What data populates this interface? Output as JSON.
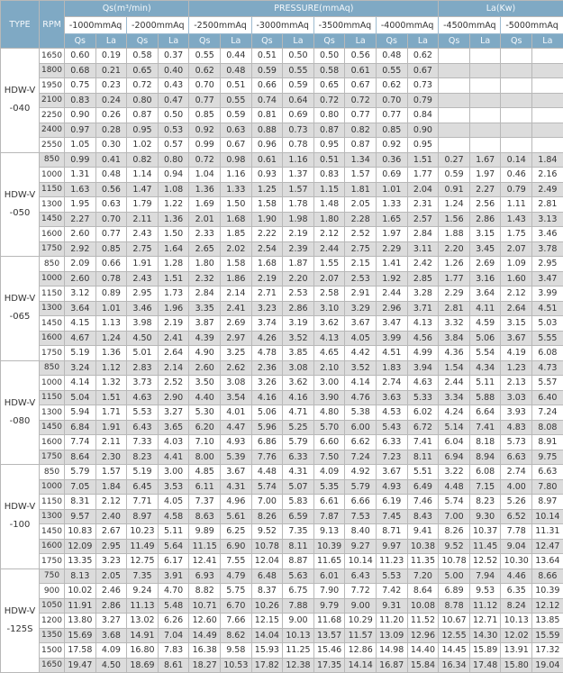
{
  "header": {
    "type": "TYPE",
    "rpm": "RPM",
    "qs_unit": "Qs(m³/min)",
    "pressure_unit": "PRESSURE(mmAq)",
    "la_unit": "La(Kw)",
    "pressures": [
      "-1000mmAq",
      "-2000mmAq",
      "-2500mmAq",
      "-3000mmAq",
      "-3500mmAq",
      "-4000mmAq",
      "-4500mmAq",
      "-5000mmAq"
    ],
    "qs": "Qs",
    "la": "La"
  },
  "groups": [
    {
      "type": "HDW-V\n-040",
      "rows": [
        [
          "1650",
          "0.60",
          "0.19",
          "0.58",
          "0.37",
          "0.55",
          "0.44",
          "0.51",
          "0.50",
          "0.50",
          "0.56",
          "0.48",
          "0.62",
          "",
          "",
          "",
          ""
        ],
        [
          "1800",
          "0.68",
          "0.21",
          "0.65",
          "0.40",
          "0.62",
          "0.48",
          "0.59",
          "0.55",
          "0.58",
          "0.61",
          "0.55",
          "0.67",
          "",
          "",
          "",
          ""
        ],
        [
          "1950",
          "0.75",
          "0.23",
          "0.72",
          "0.43",
          "0.70",
          "0.51",
          "0.66",
          "0.59",
          "0.65",
          "0.67",
          "0.62",
          "0.73",
          "",
          "",
          "",
          ""
        ],
        [
          "2100",
          "0.83",
          "0.24",
          "0.80",
          "0.47",
          "0.77",
          "0.55",
          "0.74",
          "0.64",
          "0.72",
          "0.72",
          "0.70",
          "0.79",
          "",
          "",
          "",
          ""
        ],
        [
          "2250",
          "0.90",
          "0.26",
          "0.87",
          "0.50",
          "0.85",
          "0.59",
          "0.81",
          "0.69",
          "0.80",
          "0.77",
          "0.77",
          "0.84",
          "",
          "",
          "",
          ""
        ],
        [
          "2400",
          "0.97",
          "0.28",
          "0.95",
          "0.53",
          "0.92",
          "0.63",
          "0.88",
          "0.73",
          "0.87",
          "0.82",
          "0.85",
          "0.90",
          "",
          "",
          "",
          ""
        ],
        [
          "2550",
          "1.05",
          "0.30",
          "1.02",
          "0.57",
          "0.99",
          "0.67",
          "0.96",
          "0.78",
          "0.95",
          "0.87",
          "0.92",
          "0.95",
          "",
          "",
          "",
          ""
        ]
      ]
    },
    {
      "type": "HDW-V\n-050",
      "rows": [
        [
          "850",
          "0.99",
          "0.41",
          "0.82",
          "0.80",
          "0.72",
          "0.98",
          "0.61",
          "1.16",
          "0.51",
          "1.34",
          "0.36",
          "1.51",
          "0.27",
          "1.67",
          "0.14",
          "1.84"
        ],
        [
          "1000",
          "1.31",
          "0.48",
          "1.14",
          "0.94",
          "1.04",
          "1.16",
          "0.93",
          "1.37",
          "0.83",
          "1.57",
          "0.69",
          "1.77",
          "0.59",
          "1.97",
          "0.46",
          "2.16"
        ],
        [
          "1150",
          "1.63",
          "0.56",
          "1.47",
          "1.08",
          "1.36",
          "1.33",
          "1.25",
          "1.57",
          "1.15",
          "1.81",
          "1.01",
          "2.04",
          "0.91",
          "2.27",
          "0.79",
          "2.49"
        ],
        [
          "1300",
          "1.95",
          "0.63",
          "1.79",
          "1.22",
          "1.69",
          "1.50",
          "1.58",
          "1.78",
          "1.48",
          "2.05",
          "1.33",
          "2.31",
          "1.24",
          "2.56",
          "1.11",
          "2.81"
        ],
        [
          "1450",
          "2.27",
          "0.70",
          "2.11",
          "1.36",
          "2.01",
          "1.68",
          "1.90",
          "1.98",
          "1.80",
          "2.28",
          "1.65",
          "2.57",
          "1.56",
          "2.86",
          "1.43",
          "3.13"
        ],
        [
          "1600",
          "2.60",
          "0.77",
          "2.43",
          "1.50",
          "2.33",
          "1.85",
          "2.22",
          "2.19",
          "2.12",
          "2.52",
          "1.97",
          "2.84",
          "1.88",
          "3.15",
          "1.75",
          "3.46"
        ],
        [
          "1750",
          "2.92",
          "0.85",
          "2.75",
          "1.64",
          "2.65",
          "2.02",
          "2.54",
          "2.39",
          "2.44",
          "2.75",
          "2.29",
          "3.11",
          "2.20",
          "3.45",
          "2.07",
          "3.78"
        ]
      ]
    },
    {
      "type": "HDW-V\n-065",
      "rows": [
        [
          "850",
          "2.09",
          "0.66",
          "1.91",
          "1.28",
          "1.80",
          "1.58",
          "1.68",
          "1.87",
          "1.55",
          "2.15",
          "1.41",
          "2.42",
          "1.26",
          "2.69",
          "1.09",
          "2.95"
        ],
        [
          "1000",
          "2.60",
          "0.78",
          "2.43",
          "1.51",
          "2.32",
          "1.86",
          "2.19",
          "2.20",
          "2.07",
          "2.53",
          "1.92",
          "2.85",
          "1.77",
          "3.16",
          "1.60",
          "3.47"
        ],
        [
          "1150",
          "3.12",
          "0.89",
          "2.95",
          "1.73",
          "2.84",
          "2.14",
          "2.71",
          "2.53",
          "2.58",
          "2.91",
          "2.44",
          "3.28",
          "2.29",
          "3.64",
          "2.12",
          "3.99"
        ],
        [
          "1300",
          "3.64",
          "1.01",
          "3.46",
          "1.96",
          "3.35",
          "2.41",
          "3.23",
          "2.86",
          "3.10",
          "3.29",
          "2.96",
          "3.71",
          "2.81",
          "4.11",
          "2.64",
          "4.51"
        ],
        [
          "1450",
          "4.15",
          "1.13",
          "3.98",
          "2.19",
          "3.87",
          "2.69",
          "3.74",
          "3.19",
          "3.62",
          "3.67",
          "3.47",
          "4.13",
          "3.32",
          "4.59",
          "3.15",
          "5.03"
        ],
        [
          "1600",
          "4.67",
          "1.24",
          "4.50",
          "2.41",
          "4.39",
          "2.97",
          "4.26",
          "3.52",
          "4.13",
          "4.05",
          "3.99",
          "4.56",
          "3.84",
          "5.06",
          "3.67",
          "5.55"
        ],
        [
          "1750",
          "5.19",
          "1.36",
          "5.01",
          "2.64",
          "4.90",
          "3.25",
          "4.78",
          "3.85",
          "4.65",
          "4.42",
          "4.51",
          "4.99",
          "4.36",
          "5.54",
          "4.19",
          "6.08"
        ]
      ]
    },
    {
      "type": "HDW-V\n-080",
      "rows": [
        [
          "850",
          "3.24",
          "1.12",
          "2.83",
          "2.14",
          "2.60",
          "2.62",
          "2.36",
          "3.08",
          "2.10",
          "3.52",
          "1.83",
          "3.94",
          "1.54",
          "4.34",
          "1.23",
          "4.73"
        ],
        [
          "1000",
          "4.14",
          "1.32",
          "3.73",
          "2.52",
          "3.50",
          "3.08",
          "3.26",
          "3.62",
          "3.00",
          "4.14",
          "2.74",
          "4.63",
          "2.44",
          "5.11",
          "2.13",
          "5.57"
        ],
        [
          "1150",
          "5.04",
          "1.51",
          "4.63",
          "2.90",
          "4.40",
          "3.54",
          "4.16",
          "4.16",
          "3.90",
          "4.76",
          "3.63",
          "5.33",
          "3.34",
          "5.88",
          "3.03",
          "6.40"
        ],
        [
          "1300",
          "5.94",
          "1.71",
          "5.53",
          "3.27",
          "5.30",
          "4.01",
          "5.06",
          "4.71",
          "4.80",
          "5.38",
          "4.53",
          "6.02",
          "4.24",
          "6.64",
          "3.93",
          "7.24"
        ],
        [
          "1450",
          "6.84",
          "1.91",
          "6.43",
          "3.65",
          "6.20",
          "4.47",
          "5.96",
          "5.25",
          "5.70",
          "6.00",
          "5.43",
          "6.72",
          "5.14",
          "7.41",
          "4.83",
          "8.08"
        ],
        [
          "1600",
          "7.74",
          "2.11",
          "7.33",
          "4.03",
          "7.10",
          "4.93",
          "6.86",
          "5.79",
          "6.60",
          "6.62",
          "6.33",
          "7.41",
          "6.04",
          "8.18",
          "5.73",
          "8.91"
        ],
        [
          "1750",
          "8.64",
          "2.30",
          "8.23",
          "4.41",
          "8.00",
          "5.39",
          "7.76",
          "6.33",
          "7.50",
          "7.24",
          "7.23",
          "8.11",
          "6.94",
          "8.94",
          "6.63",
          "9.75"
        ]
      ]
    },
    {
      "type": "HDW-V\n-100",
      "rows": [
        [
          "850",
          "5.79",
          "1.57",
          "5.19",
          "3.00",
          "4.85",
          "3.67",
          "4.48",
          "4.31",
          "4.09",
          "4.92",
          "3.67",
          "5.51",
          "3.22",
          "6.08",
          "2.74",
          "6.63"
        ],
        [
          "1000",
          "7.05",
          "1.84",
          "6.45",
          "3.53",
          "6.11",
          "4.31",
          "5.74",
          "5.07",
          "5.35",
          "5.79",
          "4.93",
          "6.49",
          "4.48",
          "7.15",
          "4.00",
          "7.80"
        ],
        [
          "1150",
          "8.31",
          "2.12",
          "7.71",
          "4.05",
          "7.37",
          "4.96",
          "7.00",
          "5.83",
          "6.61",
          "6.66",
          "6.19",
          "7.46",
          "5.74",
          "8.23",
          "5.26",
          "8.97"
        ],
        [
          "1300",
          "9.57",
          "2.40",
          "8.97",
          "4.58",
          "8.63",
          "5.61",
          "8.26",
          "6.59",
          "7.87",
          "7.53",
          "7.45",
          "8.43",
          "7.00",
          "9.30",
          "6.52",
          "10.14"
        ],
        [
          "1450",
          "10.83",
          "2.67",
          "10.23",
          "5.11",
          "9.89",
          "6.25",
          "9.52",
          "7.35",
          "9.13",
          "8.40",
          "8.71",
          "9.41",
          "8.26",
          "10.37",
          "7.78",
          "11.31"
        ],
        [
          "1600",
          "12.09",
          "2.95",
          "11.49",
          "5.64",
          "11.15",
          "6.90",
          "10.78",
          "8.11",
          "10.39",
          "9.27",
          "9.97",
          "10.38",
          "9.52",
          "11.45",
          "9.04",
          "12.47"
        ],
        [
          "1750",
          "13.35",
          "3.23",
          "12.75",
          "6.17",
          "12.41",
          "7.55",
          "12.04",
          "8.87",
          "11.65",
          "10.14",
          "11.23",
          "11.35",
          "10.78",
          "12.52",
          "10.30",
          "13.64"
        ]
      ]
    },
    {
      "type": "HDW-V\n-125S",
      "rows": [
        [
          "750",
          "8.13",
          "2.05",
          "7.35",
          "3.91",
          "6.93",
          "4.79",
          "6.48",
          "5.63",
          "6.01",
          "6.43",
          "5.53",
          "7.20",
          "5.00",
          "7.94",
          "4.46",
          "8.66"
        ],
        [
          "900",
          "10.02",
          "2.46",
          "9.24",
          "4.70",
          "8.82",
          "5.75",
          "8.37",
          "6.75",
          "7.90",
          "7.72",
          "7.42",
          "8.64",
          "6.89",
          "9.53",
          "6.35",
          "10.39"
        ],
        [
          "1050",
          "11.91",
          "2.86",
          "11.13",
          "5.48",
          "10.71",
          "6.70",
          "10.26",
          "7.88",
          "9.79",
          "9.00",
          "9.31",
          "10.08",
          "8.78",
          "11.12",
          "8.24",
          "12.12"
        ],
        [
          "1200",
          "13.80",
          "3.27",
          "13.02",
          "6.26",
          "12.60",
          "7.66",
          "12.15",
          "9.00",
          "11.68",
          "10.29",
          "11.20",
          "11.52",
          "10.67",
          "12.71",
          "10.13",
          "13.85"
        ],
        [
          "1350",
          "15.69",
          "3.68",
          "14.91",
          "7.04",
          "14.49",
          "8.62",
          "14.04",
          "10.13",
          "13.57",
          "11.57",
          "13.09",
          "12.96",
          "12.55",
          "14.30",
          "12.02",
          "15.59"
        ],
        [
          "1500",
          "17.58",
          "4.09",
          "16.80",
          "7.83",
          "16.38",
          "9.58",
          "15.93",
          "11.25",
          "15.46",
          "12.86",
          "14.98",
          "14.40",
          "14.45",
          "15.89",
          "13.91",
          "17.32"
        ],
        [
          "1650",
          "19.47",
          "4.50",
          "18.69",
          "8.61",
          "18.27",
          "10.53",
          "17.82",
          "12.38",
          "17.35",
          "14.14",
          "16.87",
          "15.84",
          "16.34",
          "17.48",
          "15.80",
          "19.04"
        ]
      ]
    }
  ]
}
